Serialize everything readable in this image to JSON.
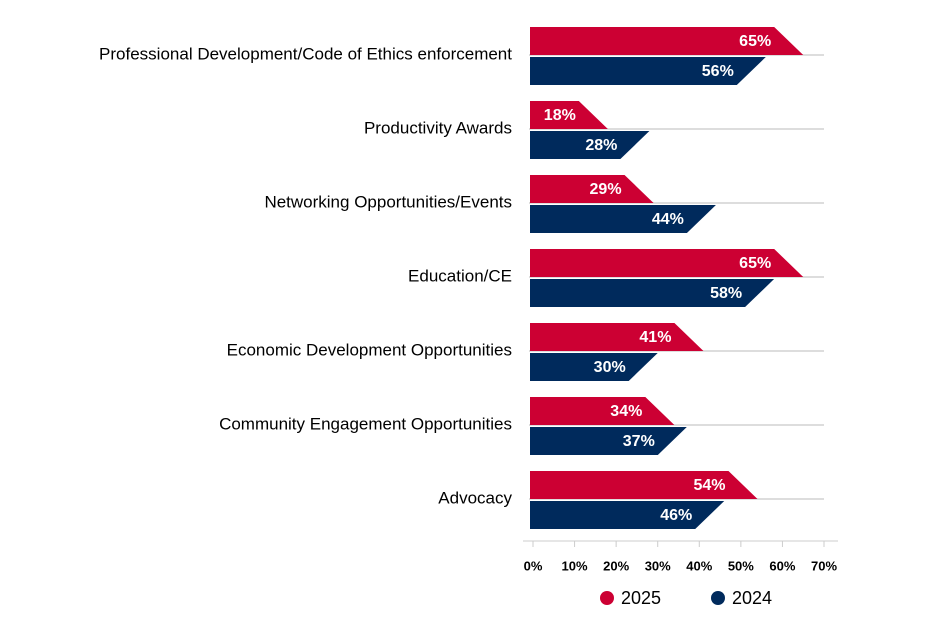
{
  "chart_data": {
    "type": "arrow-bar",
    "categories": [
      "Professional Development/Code of Ethics enforcement",
      "Productivity Awards",
      "Networking Opportunities/Events",
      "Education/CE",
      "Economic Development Opportunities",
      "Community Engagement Opportunities",
      "Advocacy"
    ],
    "series": [
      {
        "name": "2025",
        "color": "#cc0033",
        "values": [
          65,
          18,
          29,
          65,
          41,
          34,
          54
        ],
        "value_labels": [
          "65%",
          "18%",
          "29%",
          "65%",
          "41%",
          "34%",
          "54%"
        ]
      },
      {
        "name": "2024",
        "color": "#002a5c",
        "values": [
          56,
          28,
          44,
          58,
          30,
          37,
          46
        ],
        "value_labels": [
          "56%",
          "28%",
          "44%",
          "58%",
          "30%",
          "37%",
          "46%"
        ]
      }
    ],
    "xlim": [
      0,
      70
    ],
    "xticks": [
      {
        "value": 0,
        "label": "0%"
      },
      {
        "value": 10,
        "label": "10%"
      },
      {
        "value": 20,
        "label": "20%"
      },
      {
        "value": 30,
        "label": "30%"
      },
      {
        "value": 40,
        "label": "40%"
      },
      {
        "value": 50,
        "label": "50%"
      },
      {
        "value": 60,
        "label": "60%"
      },
      {
        "value": 70,
        "label": "70%"
      }
    ]
  }
}
